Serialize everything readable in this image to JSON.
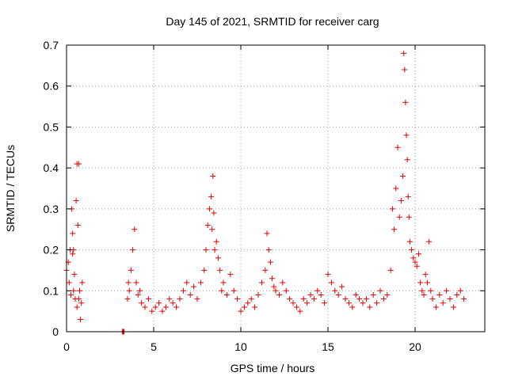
{
  "chart_data": {
    "type": "scatter",
    "title": "Day 145 of 2021, SRMTID for receiver carg",
    "xlabel": "GPS time / hours",
    "ylabel": "SRMTID / TECUs",
    "xlim": [
      0,
      24
    ],
    "ylim": [
      0,
      0.7
    ],
    "x_ticks": [
      0,
      5,
      10,
      15,
      20
    ],
    "x_tick_labels": [
      "0",
      "5",
      "10",
      "15",
      "20"
    ],
    "y_ticks": [
      0,
      0.1,
      0.2,
      0.3,
      0.4,
      0.5,
      0.6,
      0.7
    ],
    "y_tick_labels": [
      "0",
      "0.1",
      "0.2",
      "0.3",
      "0.4",
      "0.5",
      "0.6",
      "0.7"
    ],
    "grid": true,
    "marker": "+",
    "color": "#e00000",
    "series": [
      {
        "name": "SRMTID",
        "x": [
          0.0,
          0.1,
          0.15,
          0.2,
          0.25,
          0.3,
          0.35,
          0.4,
          0.45,
          0.5,
          0.55,
          0.6,
          0.65,
          0.7,
          0.75,
          0.8,
          0.85,
          0.9,
          0.7,
          0.6,
          0.4,
          0.35,
          3.2,
          3.25,
          3.3,
          3.5,
          3.55,
          3.6,
          3.7,
          3.8,
          3.9,
          4.0,
          4.1,
          4.2,
          4.3,
          4.5,
          4.7,
          4.9,
          5.1,
          5.3,
          5.5,
          5.7,
          5.9,
          6.1,
          6.3,
          6.5,
          6.7,
          6.9,
          7.1,
          7.3,
          7.5,
          7.7,
          7.9,
          8.0,
          8.1,
          8.2,
          8.3,
          8.35,
          8.4,
          8.45,
          8.5,
          8.6,
          8.7,
          8.8,
          8.9,
          9.0,
          9.2,
          9.4,
          9.6,
          9.8,
          10.0,
          10.2,
          10.4,
          10.6,
          10.8,
          11.0,
          11.2,
          11.4,
          11.5,
          11.6,
          11.7,
          11.8,
          11.9,
          12.0,
          12.2,
          12.4,
          12.6,
          12.8,
          13.0,
          13.2,
          13.4,
          13.6,
          13.8,
          14.0,
          14.2,
          14.4,
          14.6,
          14.8,
          15.0,
          15.2,
          15.4,
          15.6,
          15.8,
          16.0,
          16.2,
          16.4,
          16.6,
          16.8,
          17.0,
          17.2,
          17.4,
          17.6,
          17.8,
          18.0,
          18.2,
          18.4,
          18.6,
          18.7,
          18.8,
          18.9,
          19.0,
          19.1,
          19.2,
          19.3,
          19.35,
          19.4,
          19.45,
          19.5,
          19.55,
          19.6,
          19.65,
          19.7,
          19.8,
          19.9,
          20.0,
          20.1,
          20.2,
          20.3,
          20.4,
          20.5,
          20.6,
          20.7,
          20.8,
          20.9,
          21.0,
          21.2,
          21.4,
          21.6,
          21.8,
          22.0,
          22.2,
          22.4,
          22.6,
          22.8
        ],
        "y": [
          0.15,
          0.17,
          0.12,
          0.2,
          0.09,
          0.3,
          0.24,
          0.1,
          0.14,
          0.08,
          0.32,
          0.41,
          0.26,
          0.08,
          0.1,
          0.03,
          0.07,
          0.12,
          0.41,
          0.06,
          0.2,
          0.19,
          0.0,
          0.0,
          0.0,
          0.08,
          0.12,
          0.1,
          0.15,
          0.2,
          0.25,
          0.12,
          0.09,
          0.1,
          0.07,
          0.06,
          0.08,
          0.05,
          0.06,
          0.07,
          0.05,
          0.06,
          0.08,
          0.07,
          0.06,
          0.08,
          0.1,
          0.12,
          0.09,
          0.11,
          0.08,
          0.12,
          0.15,
          0.2,
          0.26,
          0.3,
          0.33,
          0.25,
          0.38,
          0.29,
          0.2,
          0.22,
          0.18,
          0.15,
          0.1,
          0.12,
          0.09,
          0.14,
          0.1,
          0.08,
          0.05,
          0.06,
          0.07,
          0.08,
          0.06,
          0.09,
          0.12,
          0.15,
          0.24,
          0.2,
          0.17,
          0.13,
          0.11,
          0.1,
          0.09,
          0.12,
          0.1,
          0.08,
          0.07,
          0.06,
          0.05,
          0.08,
          0.07,
          0.09,
          0.08,
          0.1,
          0.09,
          0.07,
          0.14,
          0.12,
          0.1,
          0.09,
          0.11,
          0.08,
          0.07,
          0.06,
          0.09,
          0.08,
          0.07,
          0.08,
          0.06,
          0.09,
          0.07,
          0.1,
          0.08,
          0.09,
          0.15,
          0.3,
          0.25,
          0.35,
          0.45,
          0.28,
          0.32,
          0.38,
          0.68,
          0.64,
          0.56,
          0.48,
          0.42,
          0.33,
          0.28,
          0.22,
          0.2,
          0.18,
          0.17,
          0.16,
          0.19,
          0.12,
          0.1,
          0.09,
          0.14,
          0.12,
          0.22,
          0.1,
          0.08,
          0.06,
          0.09,
          0.07,
          0.1,
          0.08,
          0.06,
          0.09,
          0.1,
          0.08
        ]
      }
    ]
  }
}
